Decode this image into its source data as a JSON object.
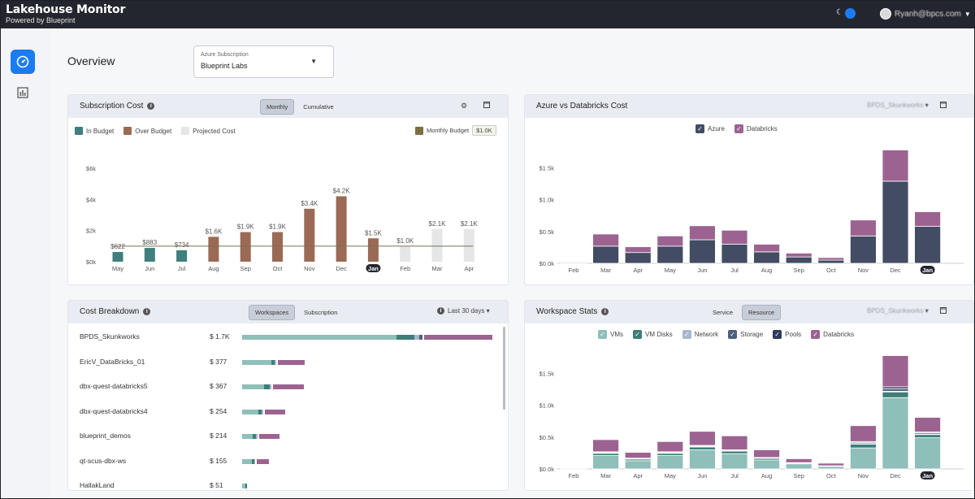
{
  "app": {
    "title": "Lakehouse Monitor",
    "subtitle": "Powered by Blueprint",
    "user": "Ryanh@bpcs.com"
  },
  "page": {
    "title": "Overview"
  },
  "subscription": {
    "label": "Azure Subscription",
    "value": "Blueprint Labs"
  },
  "colors": {
    "in_budget": "#3f7f7c",
    "over_budget": "#9a6a55",
    "projected": "#e5e6e8",
    "azure": "#424c62",
    "databricks": "#9c6391",
    "vms": "#8ebfb9",
    "vm_disks": "#3e7e78",
    "network": "#a9b7cc",
    "storage": "#4e607e",
    "pools": "#2f3b58"
  },
  "subscription_cost": {
    "title": "Subscription Cost",
    "tabs": [
      "Monthly",
      "Cumulative"
    ],
    "active_tab": "Monthly",
    "legend": [
      "In Budget",
      "Over Budget",
      "Projected Cost"
    ],
    "monthly_budget_label": "Monthly Budget",
    "monthly_budget_value": "$1.0K"
  },
  "azure_vs_databricks": {
    "title": "Azure vs Databricks Cost",
    "dropdown": "BPDS_Skunkworks",
    "legend": [
      "Azure",
      "Databricks"
    ]
  },
  "cost_breakdown": {
    "title": "Cost Breakdown",
    "tabs": [
      "Workspaces",
      "Subscription"
    ],
    "active_tab": "Workspaces",
    "range": "Last 30 days",
    "rows": [
      {
        "name": "BPDS_Skunkworks",
        "amount": "$ 1.7K",
        "segs": [
          190,
          22,
          6,
          4,
          84
        ]
      },
      {
        "name": "EricV_DataBricks_01",
        "amount": "$ 377",
        "segs": [
          36,
          4,
          2,
          0,
          33
        ]
      },
      {
        "name": "dbx-quest-databricks5",
        "amount": "$ 367",
        "segs": [
          27,
          7,
          2,
          0,
          38
        ]
      },
      {
        "name": "dbx-quest-databricks4",
        "amount": "$ 254",
        "segs": [
          20,
          4,
          2,
          0,
          25
        ]
      },
      {
        "name": "blueprint_demos",
        "amount": "$ 214",
        "segs": [
          13,
          4,
          2,
          0,
          25
        ]
      },
      {
        "name": "qt-scus-dbx-ws",
        "amount": "$ 155",
        "segs": [
          12,
          3,
          1,
          0,
          15
        ]
      },
      {
        "name": "HallakLand",
        "amount": "$ 51",
        "segs": [
          4,
          2,
          0,
          0,
          0
        ]
      }
    ]
  },
  "workspace_stats": {
    "title": "Workspace Stats",
    "tabs": [
      "Service",
      "Resource"
    ],
    "active_tab": "Resource",
    "dropdown": "BPDS_Skunkworks",
    "legend": [
      "VMs",
      "VM Disks",
      "Network",
      "Storage",
      "Pools",
      "Databricks"
    ]
  },
  "chart_data": [
    {
      "type": "bar",
      "title": "Subscription Cost",
      "categories": [
        "May",
        "Jun",
        "Jul",
        "Aug",
        "Sep",
        "Oct",
        "Nov",
        "Dec",
        "Jan",
        "Feb",
        "Mar",
        "Apr"
      ],
      "values": [
        622,
        883,
        734,
        1600,
        1900,
        1900,
        3400,
        4200,
        1500,
        1000,
        2100,
        2100
      ],
      "labels": [
        "$622",
        "$883",
        "$734",
        "$1.6K",
        "$1.9K",
        "$1.9K",
        "$3.4K",
        "$4.2K",
        "$1.5K",
        "$1.0K",
        "$2.1K",
        "$2.1K"
      ],
      "status": [
        "in",
        "in",
        "in",
        "over",
        "over",
        "over",
        "over",
        "over",
        "over",
        "proj",
        "proj",
        "proj"
      ],
      "budget": 1000,
      "yticks": [
        "$0k",
        "$2k",
        "$4k",
        "$6k"
      ],
      "ylim": [
        0,
        6000
      ],
      "highlight": "Jan",
      "legend": [
        "In Budget",
        "Over Budget",
        "Projected Cost"
      ]
    },
    {
      "type": "bar",
      "stacked": true,
      "title": "Azure vs Databricks Cost",
      "categories": [
        "Feb",
        "Mar",
        "Apr",
        "May",
        "Jun",
        "Jul",
        "Aug",
        "Sep",
        "Oct",
        "Nov",
        "Dec",
        "Jan"
      ],
      "series": [
        {
          "name": "Azure",
          "values": [
            20,
            270,
            170,
            270,
            370,
            300,
            180,
            100,
            50,
            430,
            1290,
            580
          ]
        },
        {
          "name": "Databricks",
          "values": [
            10,
            190,
            90,
            160,
            220,
            220,
            120,
            60,
            40,
            250,
            490,
            230
          ]
        }
      ],
      "yticks": [
        "$0.0k",
        "$0.5k",
        "$1.0k",
        "$1.5k"
      ],
      "ylim": [
        0,
        1800
      ],
      "highlight": "Jan"
    },
    {
      "type": "bar",
      "stacked": true,
      "title": "Workspace Stats",
      "categories": [
        "Feb",
        "Mar",
        "Apr",
        "May",
        "Jun",
        "Jul",
        "Aug",
        "Sep",
        "Oct",
        "Nov",
        "Dec",
        "Jan"
      ],
      "series": [
        {
          "name": "VMs",
          "values": [
            15,
            210,
            130,
            210,
            300,
            240,
            140,
            80,
            40,
            330,
            1120,
            490
          ]
        },
        {
          "name": "VM Disks",
          "values": [
            3,
            35,
            25,
            35,
            45,
            40,
            25,
            12,
            6,
            60,
            90,
            50
          ]
        },
        {
          "name": "Network",
          "values": [
            1,
            5,
            4,
            5,
            6,
            5,
            3,
            2,
            1,
            8,
            10,
            8
          ]
        },
        {
          "name": "Storage",
          "values": [
            1,
            10,
            6,
            10,
            10,
            8,
            6,
            3,
            2,
            20,
            40,
            20
          ]
        },
        {
          "name": "Pools",
          "values": [
            0,
            10,
            5,
            10,
            9,
            7,
            6,
            3,
            1,
            12,
            30,
            12
          ]
        },
        {
          "name": "Databricks",
          "values": [
            10,
            190,
            90,
            160,
            220,
            220,
            120,
            60,
            40,
            250,
            490,
            230
          ]
        }
      ],
      "yticks": [
        "$0.0k",
        "$0.5k",
        "$1.0k",
        "$1.5k"
      ],
      "ylim": [
        0,
        1800
      ],
      "highlight": "Jan"
    }
  ]
}
